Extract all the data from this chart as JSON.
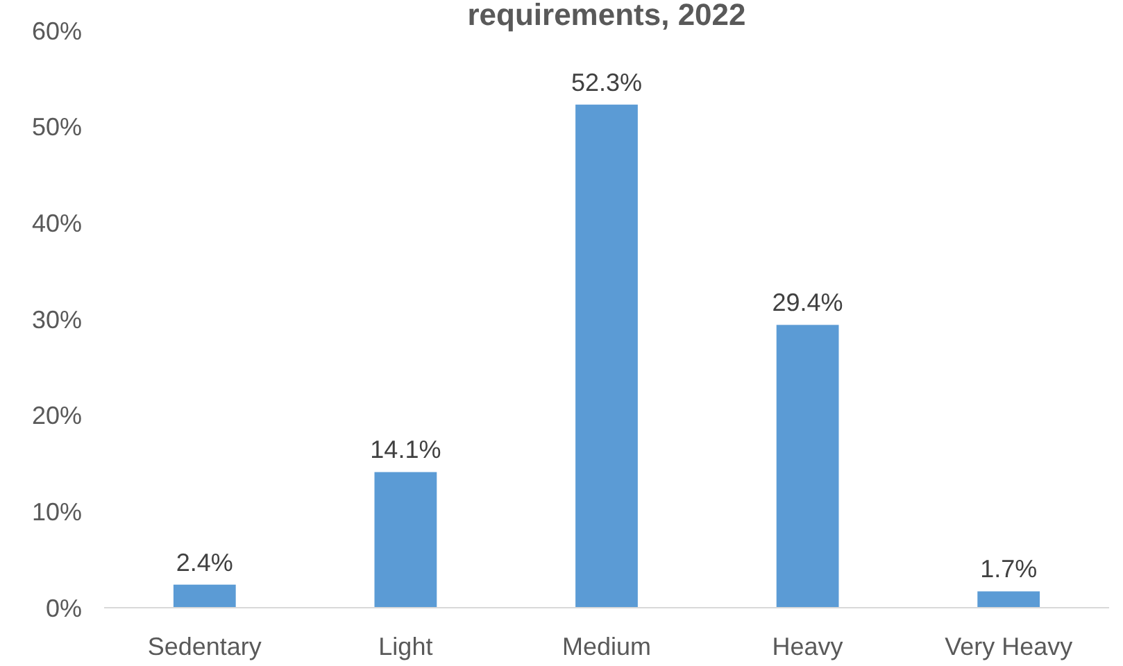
{
  "chart_data": {
    "type": "bar",
    "title": "requirements, 2022",
    "categories": [
      "Sedentary",
      "Light",
      "Medium",
      "Heavy",
      "Very Heavy"
    ],
    "values": [
      2.4,
      14.1,
      52.3,
      29.4,
      1.7
    ],
    "value_labels": [
      "2.4%",
      "14.1%",
      "52.3%",
      "29.4%",
      "1.7%"
    ],
    "color": "#5b9bd5",
    "ylim": [
      0,
      60
    ],
    "yticks": [
      {
        "value": 0,
        "label": "0%"
      },
      {
        "value": 10,
        "label": "10%"
      },
      {
        "value": 20,
        "label": "20%"
      },
      {
        "value": 30,
        "label": "30%"
      },
      {
        "value": 40,
        "label": "40%"
      },
      {
        "value": 50,
        "label": "50%"
      },
      {
        "value": 60,
        "label": "60%"
      }
    ],
    "grid": false
  }
}
